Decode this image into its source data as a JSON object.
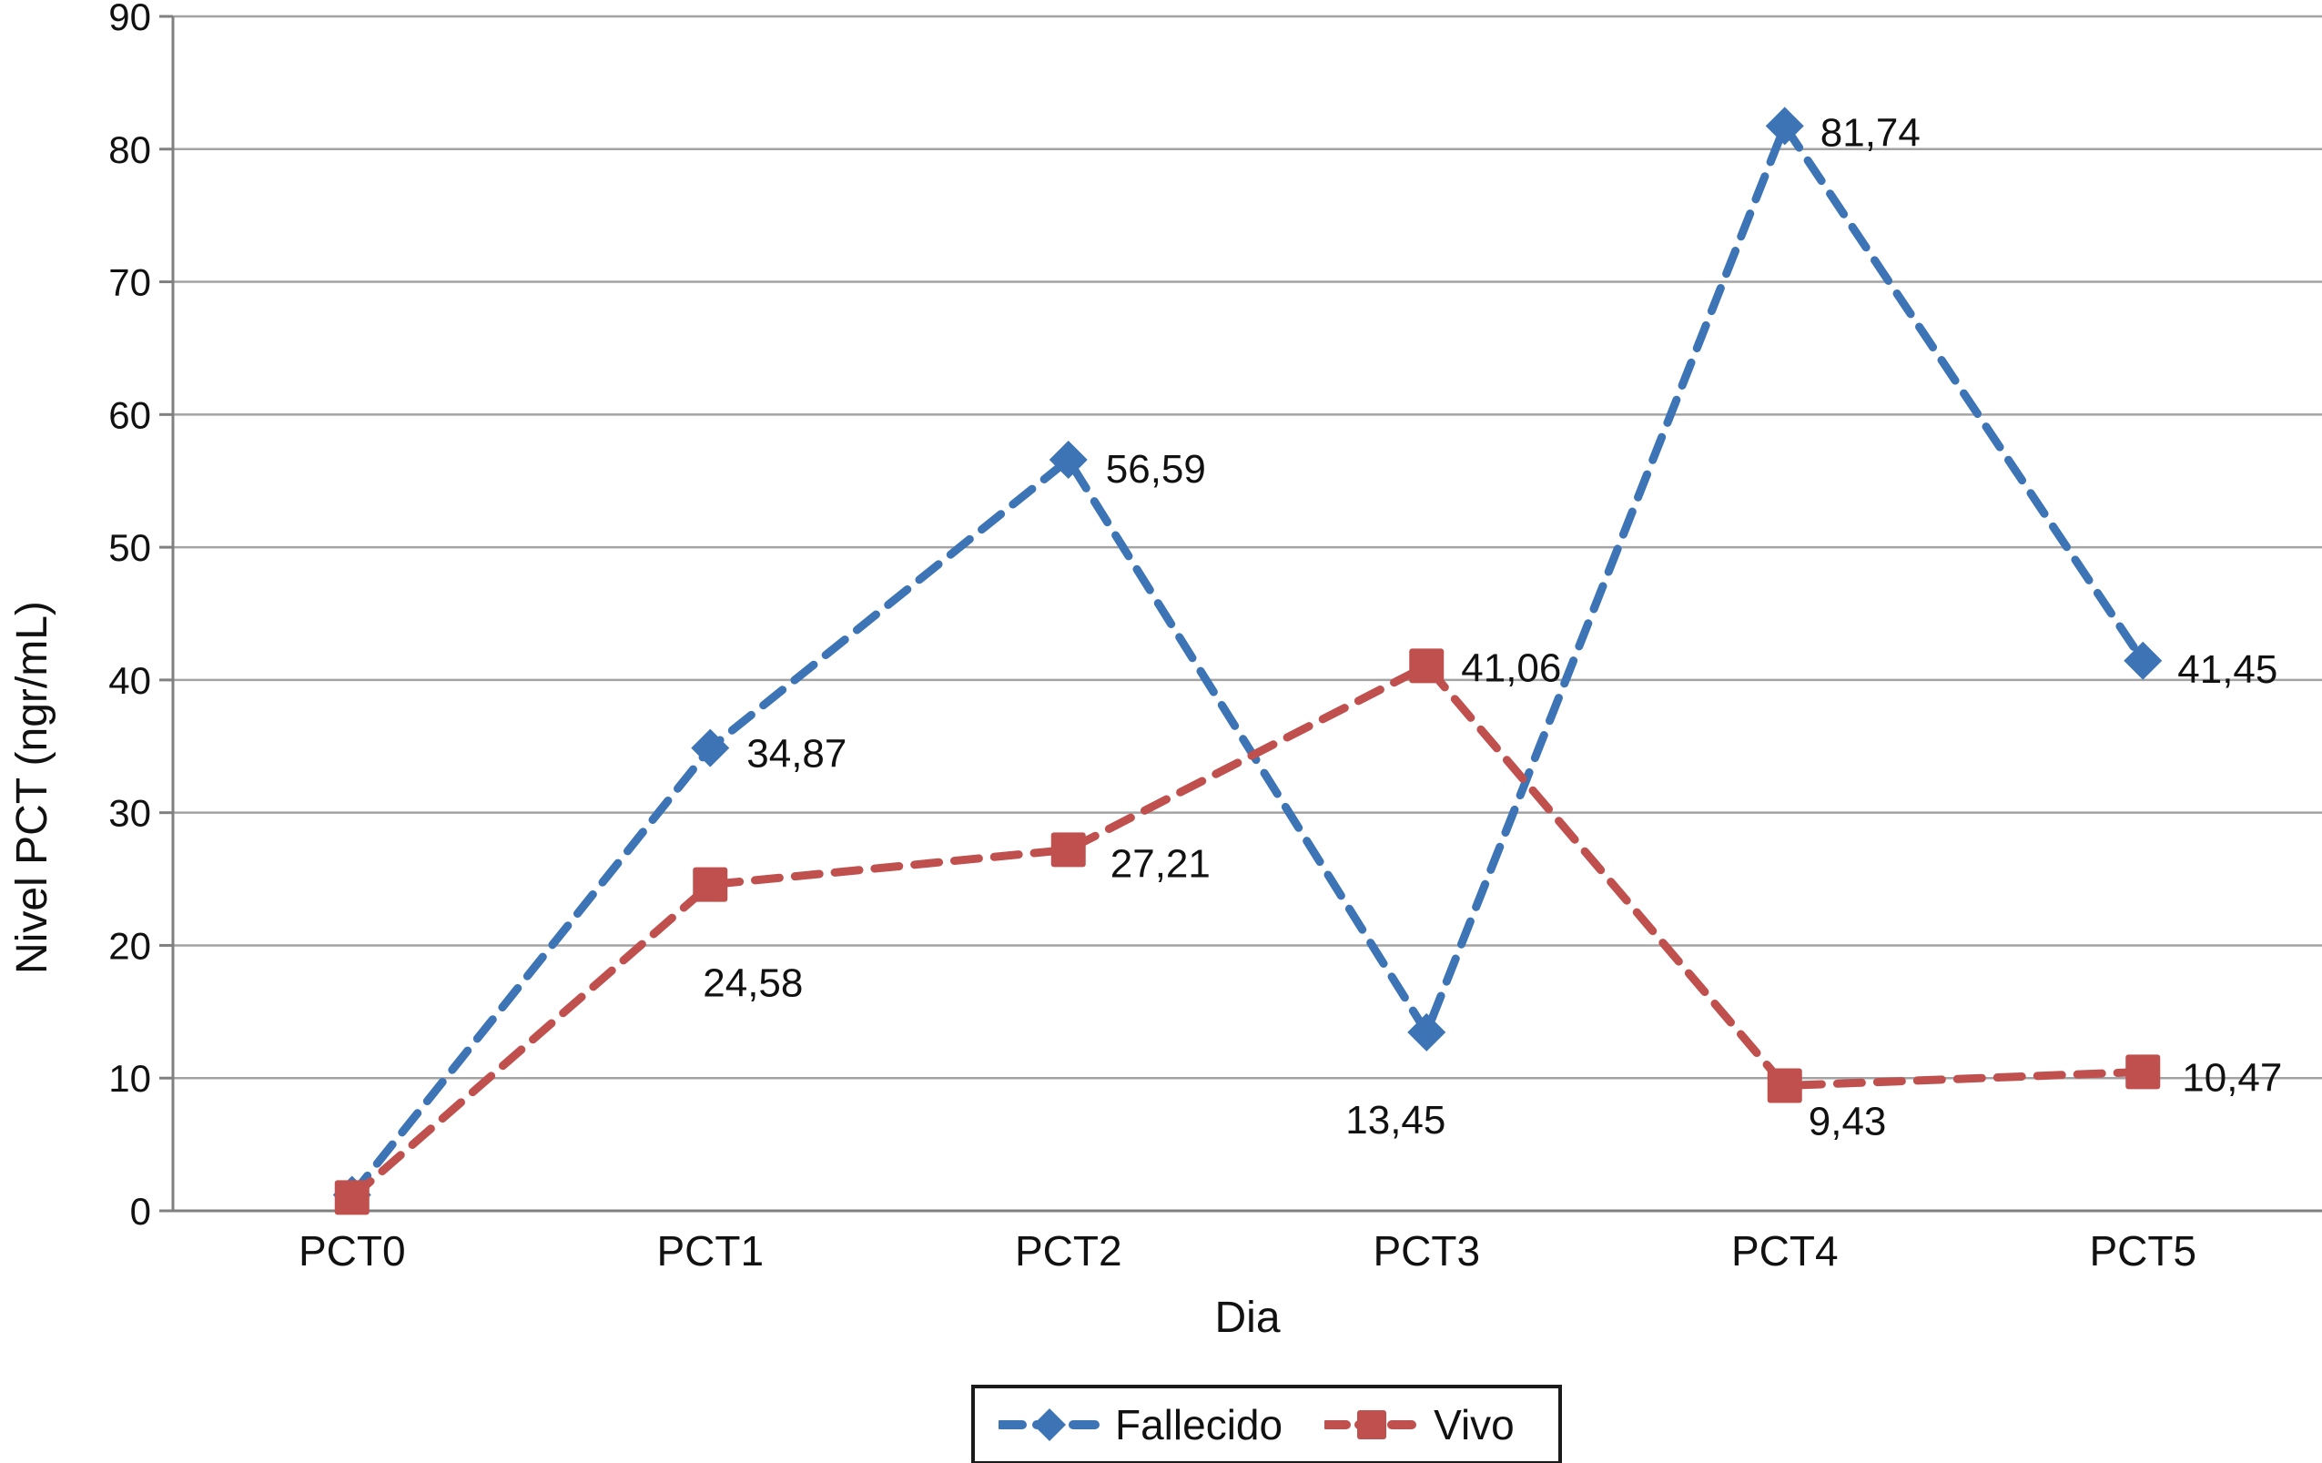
{
  "chart_data": {
    "type": "line",
    "title": "",
    "xlabel": "Dia",
    "ylabel": "Nivel PCT (ngr/mL)",
    "categories": [
      "PCT0",
      "PCT1",
      "PCT2",
      "PCT3",
      "PCT4",
      "PCT5"
    ],
    "y_axis": {
      "min": 0,
      "max": 90,
      "step": 10,
      "tick_labels": [
        "0",
        "10",
        "20",
        "30",
        "40",
        "50",
        "60",
        "70",
        "80",
        "90"
      ]
    },
    "grid": true,
    "legend_position": "bottom-center",
    "axis_color": "#808080",
    "gridline_color": "#a3a3a3",
    "series": [
      {
        "name": "Fallecido",
        "color": "#3d74b5",
        "marker": "diamond",
        "line_style": "dashed",
        "points": [
          {
            "category": "PCT0",
            "value": 1.2,
            "label": "",
            "label_offset": [
              0,
              0
            ]
          },
          {
            "category": "PCT1",
            "value": 34.87,
            "label": "34,87",
            "label_offset": [
              40,
              21
            ]
          },
          {
            "category": "PCT2",
            "value": 56.59,
            "label": "56,59",
            "label_offset": [
              41,
              25
            ]
          },
          {
            "category": "PCT3",
            "value": 13.45,
            "label": "13,45",
            "label_offset": [
              -89,
              111
            ]
          },
          {
            "category": "PCT4",
            "value": 81.74,
            "label": "81,74",
            "label_offset": [
              39,
              22
            ]
          },
          {
            "category": "PCT5",
            "value": 41.45,
            "label": "41,45",
            "label_offset": [
              38,
              24
            ]
          }
        ]
      },
      {
        "name": "Vivo",
        "color": "#c0504d",
        "marker": "square",
        "line_style": "dashed",
        "points": [
          {
            "category": "PCT0",
            "value": 1.0,
            "label": "",
            "label_offset": [
              0,
              0
            ]
          },
          {
            "category": "PCT1",
            "value": 24.58,
            "label": "24,58",
            "label_offset": [
              -8,
              123
            ]
          },
          {
            "category": "PCT2",
            "value": 27.21,
            "label": "27,21",
            "label_offset": [
              46,
              30
            ]
          },
          {
            "category": "PCT3",
            "value": 41.06,
            "label": "41,06",
            "label_offset": [
              38,
              17
            ]
          },
          {
            "category": "PCT4",
            "value": 9.43,
            "label": "9,43",
            "label_offset": [
              26,
              54
            ]
          },
          {
            "category": "PCT5",
            "value": 10.47,
            "label": "10,47",
            "label_offset": [
              43,
              21
            ]
          }
        ]
      }
    ]
  }
}
